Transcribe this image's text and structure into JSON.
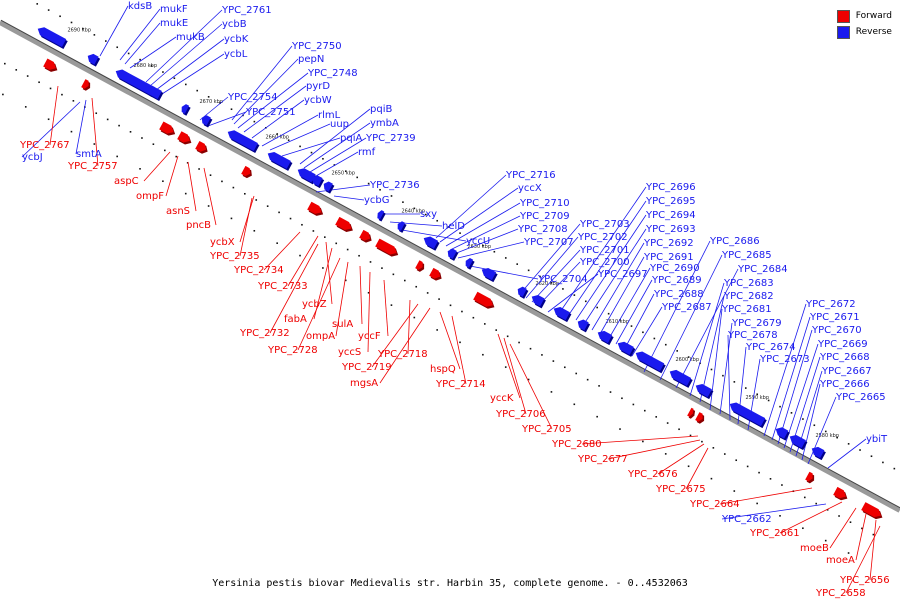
{
  "caption": "Yersinia pestis biovar Medievalis str. Harbin 35, complete genome. - 0..4532063",
  "legend": {
    "forward": {
      "label": "Forward",
      "color": "#ee0000"
    },
    "reverse": {
      "label": "Reverse",
      "color": "#1a1aee"
    }
  },
  "scale_labels": [
    "2690 kbp",
    "2680 kbp",
    "2670 kbp",
    "2660 kbp",
    "2650 kbp",
    "2640 kbp",
    "2630 kbp",
    "2620 kbp",
    "2610 kbp",
    "2600 kbp",
    "2590 kbp",
    "2580 kbp"
  ],
  "reverse_genes": [
    "kdsB",
    "mukF",
    "mukE",
    "mukB",
    "YPC_2761",
    "ycbB",
    "ycbK",
    "ycbL",
    "smtA",
    "ycbJ",
    "YPC_2750",
    "pepN",
    "YPC_2748",
    "YPC_2754",
    "pyrD",
    "YPC_2751",
    "ycbW",
    "rlmL",
    "uup",
    "pqiA",
    "pqiB",
    "ymbA",
    "YPC_2739",
    "rmf",
    "YPC_2736",
    "ycbG",
    "sxy",
    "helD",
    "yccU",
    "YPC_2716",
    "yccX",
    "YPC_2710",
    "YPC_2709",
    "YPC_2708",
    "YPC_2707",
    "YPC_2704",
    "YPC_2703",
    "YPC_2702",
    "YPC_2701",
    "YPC_2700",
    "YPC_2697",
    "YPC_2696",
    "YPC_2695",
    "YPC_2694",
    "YPC_2693",
    "YPC_2692",
    "YPC_2691",
    "YPC_2690",
    "YPC_2689",
    "YPC_2688",
    "YPC_2687",
    "YPC_2686",
    "YPC_2685",
    "YPC_2684",
    "YPC_2683",
    "YPC_2682",
    "YPC_2681",
    "YPC_2679",
    "YPC_2678",
    "YPC_2674",
    "YPC_2673",
    "YPC_2672",
    "YPC_2671",
    "YPC_2670",
    "YPC_2669",
    "YPC_2668",
    "YPC_2667",
    "YPC_2666",
    "YPC_2665",
    "ybiT",
    "YPC_2662"
  ],
  "forward_genes": [
    "YPC_2767",
    "YPC_2757",
    "aspC",
    "ompF",
    "asnS",
    "pncB",
    "ycbX",
    "YPC_2735",
    "YPC_2734",
    "YPC_2733",
    "ycbZ",
    "fabA",
    "YPC_2732",
    "YPC_2728",
    "ompA",
    "sulA",
    "yccS",
    "yccF",
    "YPC_2718",
    "YPC_2719",
    "mgsA",
    "hspQ",
    "YPC_2714",
    "yccK",
    "YPC_2706",
    "YPC_2705",
    "YPC_2680",
    "YPC_2677",
    "YPC_2676",
    "YPC_2675",
    "YPC_2664",
    "YPC_2661",
    "moeB",
    "moeA",
    "YPC_2656",
    "YPC_2658"
  ]
}
